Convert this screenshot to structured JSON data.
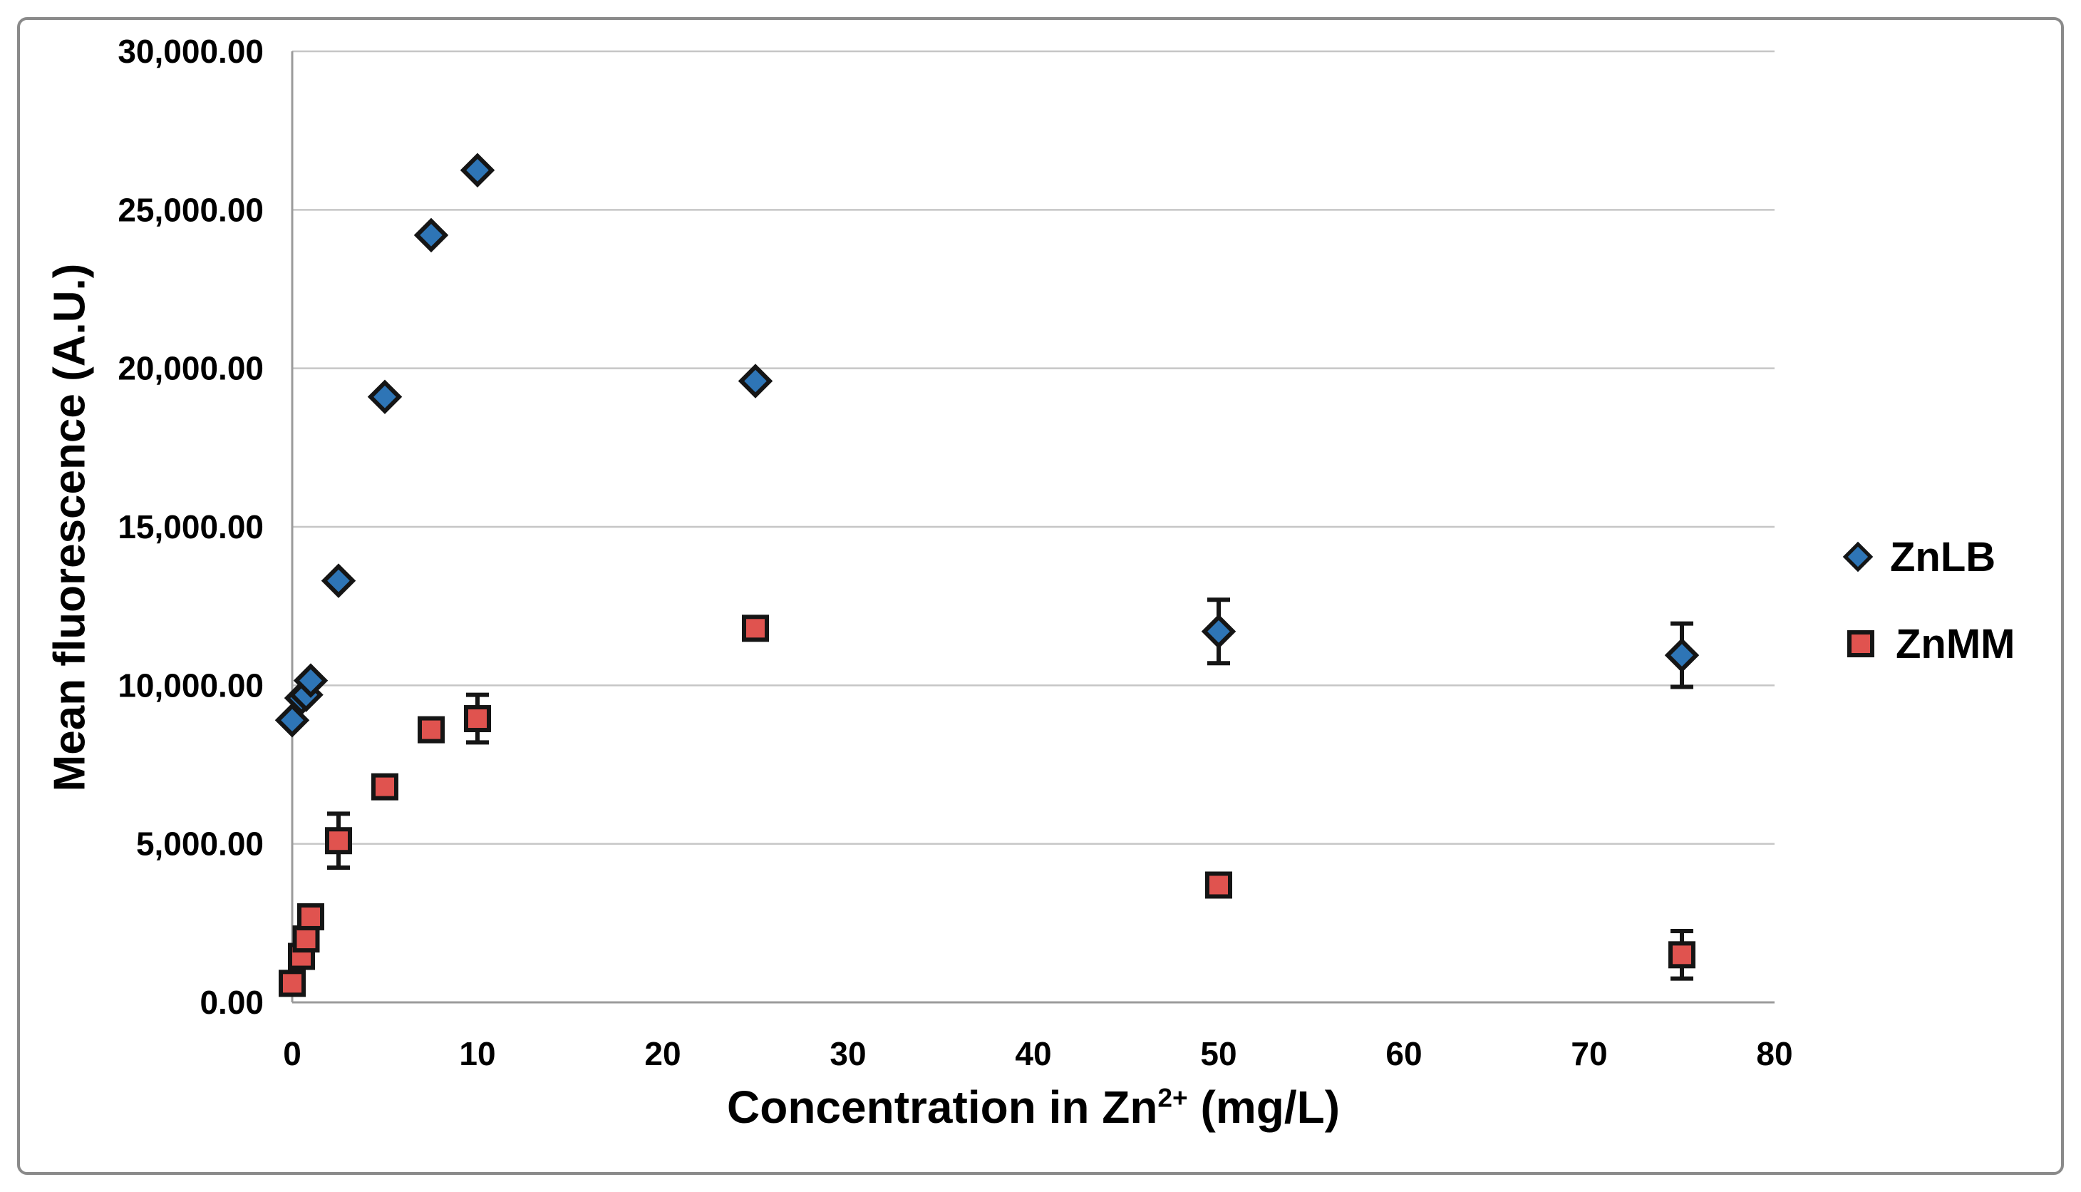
{
  "figure": {
    "background": "#FFFFFF",
    "border_color": "#8A8A8A",
    "grid_color": "#C6C6C6",
    "axis_color": "#9B9B9B",
    "marker_edge_color": "#151515",
    "y_title": "Mean fluorescence (A.U.)",
    "x_title": {
      "prefix": "Concentration in Zn",
      "sup": "2+",
      "suffix": " (mg/L)"
    },
    "y_tick_labels": [
      "30,000.00",
      "25,000.00",
      "20,000.00",
      "15,000.00",
      "10,000.00",
      "5,000.00",
      "0.00"
    ],
    "x_tick_labels": [
      "0",
      "10",
      "20",
      "30",
      "40",
      "50",
      "60",
      "70",
      "80"
    ]
  },
  "legend": {
    "position": "right",
    "items": [
      {
        "label": "ZnLB",
        "marker": "diamond-icon",
        "color": "#2E75B6"
      },
      {
        "label": "ZnMM",
        "marker": "square-icon",
        "color": "#E0534F"
      }
    ]
  },
  "chart_data": {
    "type": "scatter",
    "title": "",
    "xlabel": "Concentration in Zn2+ (mg/L)",
    "ylabel": "Mean fluorescence (A.U.)",
    "xlim": [
      0,
      80
    ],
    "ylim": [
      0,
      30000
    ],
    "y_gridline_step": 5000,
    "x_ticks": [
      0,
      10,
      20,
      30,
      40,
      50,
      60,
      70,
      80
    ],
    "grid": "horizontal-only",
    "legend_position": "right",
    "series": [
      {
        "name": "ZnLB",
        "marker": "diamond",
        "color": "#2E75B6",
        "edge_color": "#151515",
        "points": [
          {
            "x": 0,
            "y": 8900
          },
          {
            "x": 0.5,
            "y": 9600
          },
          {
            "x": 0.75,
            "y": 9700
          },
          {
            "x": 1,
            "y": 10150
          },
          {
            "x": 2.5,
            "y": 13300
          },
          {
            "x": 5,
            "y": 19100
          },
          {
            "x": 7.5,
            "y": 24200
          },
          {
            "x": 10,
            "y": 26250
          },
          {
            "x": 25,
            "y": 19600
          },
          {
            "x": 50,
            "y": 11700,
            "err": 1000
          },
          {
            "x": 75,
            "y": 10950,
            "err": 1000
          }
        ]
      },
      {
        "name": "ZnMM",
        "marker": "square",
        "color": "#E0534F",
        "edge_color": "#151515",
        "points": [
          {
            "x": 0,
            "y": 600
          },
          {
            "x": 0.5,
            "y": 1450
          },
          {
            "x": 0.75,
            "y": 2000
          },
          {
            "x": 1,
            "y": 2700
          },
          {
            "x": 2.5,
            "y": 5100,
            "err": 850
          },
          {
            "x": 5,
            "y": 6800
          },
          {
            "x": 7.5,
            "y": 8600
          },
          {
            "x": 10,
            "y": 8950,
            "err": 750
          },
          {
            "x": 25,
            "y": 11800
          },
          {
            "x": 50,
            "y": 3700
          },
          {
            "x": 75,
            "y": 1500,
            "err": 750
          }
        ]
      }
    ]
  }
}
